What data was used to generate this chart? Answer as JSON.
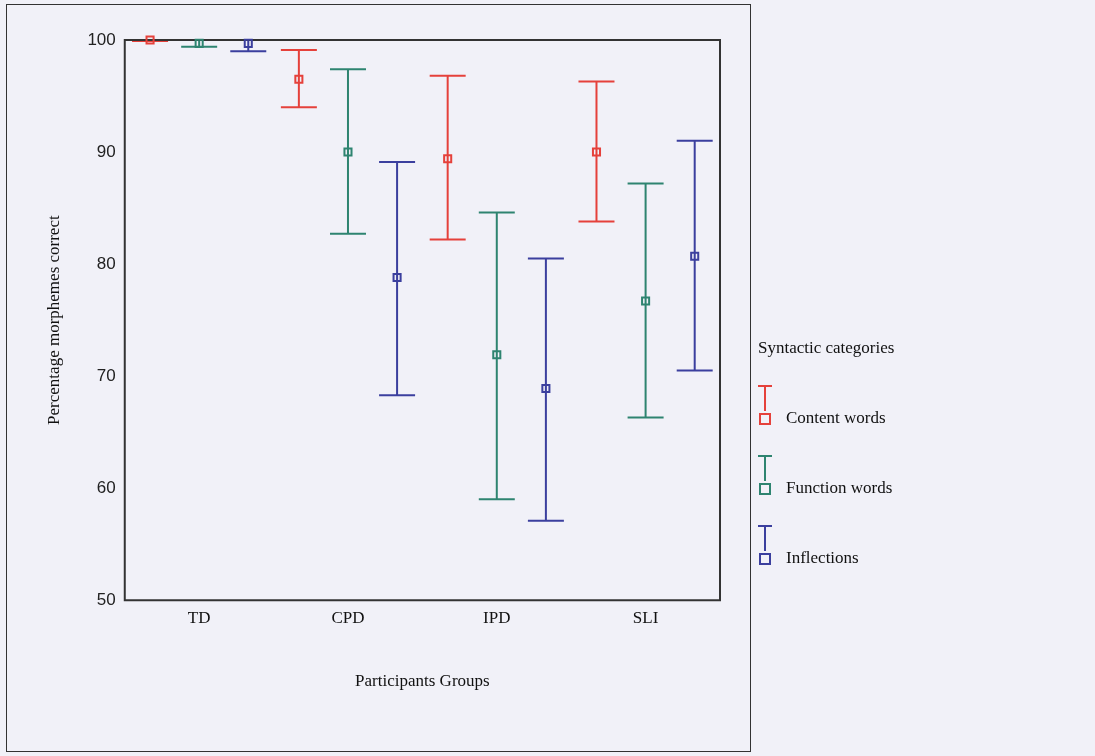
{
  "chart_data": {
    "type": "scatter",
    "xlabel": "Participants Groups",
    "ylabel": "Percentage morphemes correct",
    "legend_title": "Syntactic categories",
    "legend": "right",
    "marker": "square",
    "grid": false,
    "categories": [
      "TD",
      "CPD",
      "IPD",
      "SLI"
    ],
    "ylim": [
      50,
      100
    ],
    "yticks": [
      50,
      60,
      70,
      80,
      90,
      100
    ],
    "series": [
      {
        "name": "Content words",
        "color": "#e5413b",
        "values": [
          100,
          96.5,
          89.4,
          90.0
        ],
        "errors": [
          [
            99.9,
            100
          ],
          [
            94.0,
            99.1
          ],
          [
            82.2,
            96.8
          ],
          [
            83.8,
            96.3
          ]
        ]
      },
      {
        "name": "Function words",
        "color": "#2e8470",
        "values": [
          99.7,
          90.0,
          71.9,
          76.7
        ],
        "errors": [
          [
            99.4,
            100
          ],
          [
            82.7,
            97.4
          ],
          [
            59.0,
            84.6
          ],
          [
            66.3,
            87.2
          ]
        ]
      },
      {
        "name": "Inflections",
        "color": "#3b3f9e",
        "values": [
          99.7,
          78.8,
          68.9,
          80.7
        ],
        "errors": [
          [
            99.0,
            100
          ],
          [
            68.3,
            89.1
          ],
          [
            57.1,
            80.5
          ],
          [
            70.5,
            91.0
          ]
        ]
      }
    ]
  }
}
